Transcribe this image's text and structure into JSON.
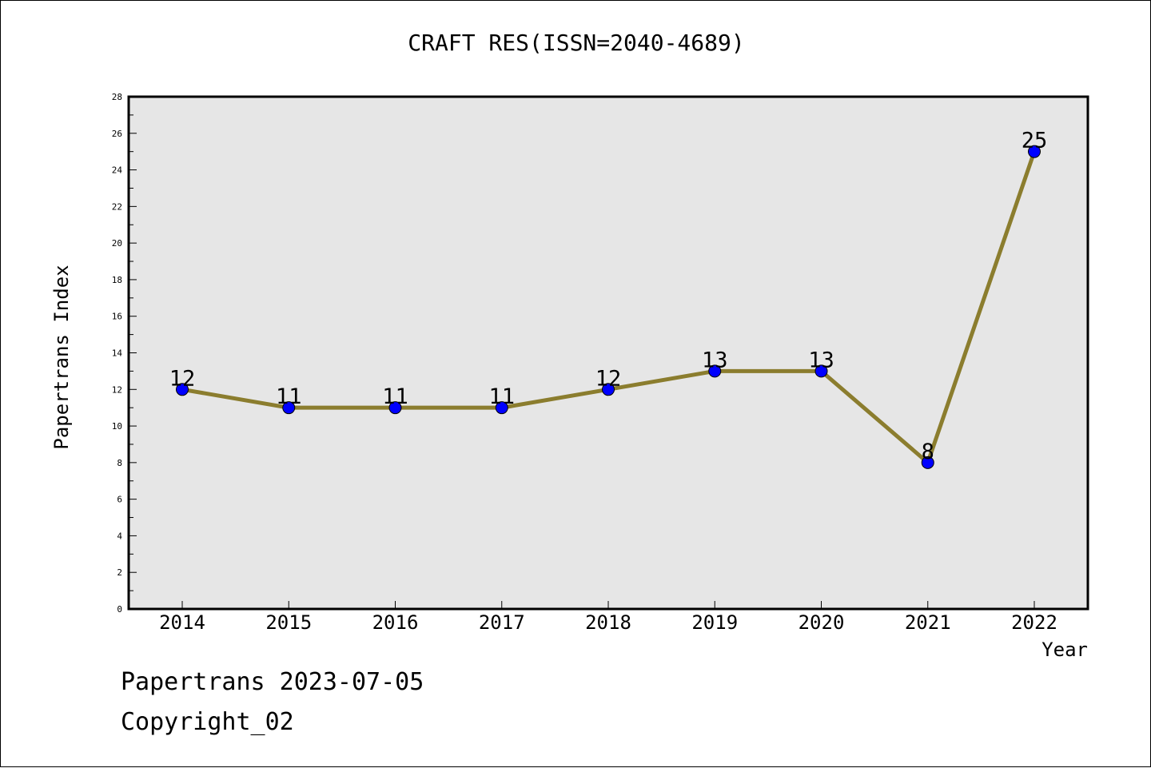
{
  "chart_data": {
    "type": "line",
    "title": "CRAFT RES(ISSN=2040-4689)",
    "xlabel": "Year",
    "ylabel": "Papertrans Index",
    "ylim": [
      0,
      28
    ],
    "yticks": [
      0,
      2,
      4,
      6,
      8,
      10,
      12,
      14,
      16,
      18,
      20,
      22,
      24,
      26,
      28
    ],
    "grid": false,
    "categories": [
      "2014",
      "2015",
      "2016",
      "2017",
      "2018",
      "2019",
      "2020",
      "2021",
      "2022"
    ],
    "series": [
      {
        "values": [
          12,
          11,
          11,
          11,
          12,
          13,
          13,
          8,
          25
        ],
        "line_color": "#8b7d2e",
        "marker_color": "#0000ff"
      }
    ],
    "data_labels": [
      "12",
      "11",
      "11",
      "11",
      "12",
      "13",
      "13",
      "8",
      "25"
    ],
    "plot_background": "#e6e6e6"
  },
  "footer": {
    "line1": "Papertrans 2023-07-05",
    "line2": "Copyright_02"
  }
}
